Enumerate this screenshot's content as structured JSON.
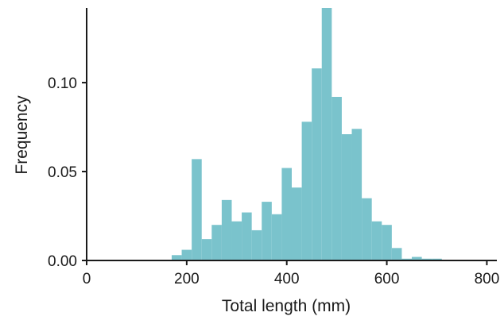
{
  "chart_data": {
    "type": "bar",
    "title": "",
    "xlabel": "Total length (mm)",
    "ylabel": "Frequency",
    "xlim": [
      0,
      820
    ],
    "ylim": [
      0,
      0.142
    ],
    "x_ticks": [
      0,
      200,
      400,
      600,
      800
    ],
    "x_tick_labels": [
      "0",
      "200",
      "400",
      "600",
      "800"
    ],
    "y_ticks": [
      0.0,
      0.05,
      0.1
    ],
    "y_tick_labels": [
      "0.00",
      "0.05",
      "0.10"
    ],
    "bin_width": 20,
    "bar_color": "#7AC3CC",
    "grid": false,
    "legend": "none",
    "bins": [
      {
        "x0": 170,
        "x1": 190,
        "value": 0.003
      },
      {
        "x0": 190,
        "x1": 210,
        "value": 0.006
      },
      {
        "x0": 210,
        "x1": 230,
        "value": 0.057
      },
      {
        "x0": 230,
        "x1": 250,
        "value": 0.012
      },
      {
        "x0": 250,
        "x1": 270,
        "value": 0.02
      },
      {
        "x0": 270,
        "x1": 290,
        "value": 0.034
      },
      {
        "x0": 290,
        "x1": 310,
        "value": 0.022
      },
      {
        "x0": 310,
        "x1": 330,
        "value": 0.027
      },
      {
        "x0": 330,
        "x1": 350,
        "value": 0.017
      },
      {
        "x0": 350,
        "x1": 370,
        "value": 0.033
      },
      {
        "x0": 370,
        "x1": 390,
        "value": 0.026
      },
      {
        "x0": 390,
        "x1": 410,
        "value": 0.052
      },
      {
        "x0": 410,
        "x1": 430,
        "value": 0.041
      },
      {
        "x0": 430,
        "x1": 450,
        "value": 0.078
      },
      {
        "x0": 450,
        "x1": 470,
        "value": 0.108
      },
      {
        "x0": 470,
        "x1": 490,
        "value": 0.142
      },
      {
        "x0": 490,
        "x1": 510,
        "value": 0.092
      },
      {
        "x0": 510,
        "x1": 530,
        "value": 0.071
      },
      {
        "x0": 530,
        "x1": 550,
        "value": 0.074
      },
      {
        "x0": 550,
        "x1": 570,
        "value": 0.035
      },
      {
        "x0": 570,
        "x1": 590,
        "value": 0.022
      },
      {
        "x0": 590,
        "x1": 610,
        "value": 0.02
      },
      {
        "x0": 610,
        "x1": 630,
        "value": 0.007
      },
      {
        "x0": 630,
        "x1": 650,
        "value": 0.001
      },
      {
        "x0": 650,
        "x1": 670,
        "value": 0.002
      },
      {
        "x0": 670,
        "x1": 690,
        "value": 0.001
      },
      {
        "x0": 690,
        "x1": 710,
        "value": 0.001
      }
    ]
  }
}
